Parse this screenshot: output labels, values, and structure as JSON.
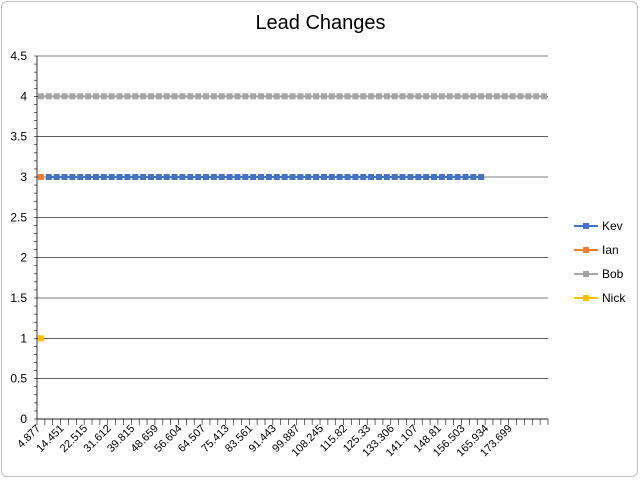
{
  "chart_data": {
    "type": "line",
    "title": "Lead Changes",
    "xlabel": "",
    "ylabel": "",
    "ylim": [
      0,
      4.5
    ],
    "yticks": [
      "0",
      "0.5",
      "1",
      "1.5",
      "2",
      "2.5",
      "3",
      "3.5",
      "4",
      "4.5"
    ],
    "x_tick_labels": [
      "4.877",
      "14.451",
      "22.515",
      "31.612",
      "39.815",
      "48.659",
      "56.604",
      "64.507",
      "75.413",
      "83.561",
      "91.443",
      "99.887",
      "108.245",
      "115.82",
      "125.33",
      "133.306",
      "141.107",
      "148.81",
      "156.503",
      "165.934",
      "173.699"
    ],
    "category_count": 65,
    "grid": "horizontal",
    "legend_position": "right",
    "series": [
      {
        "name": "Kev",
        "color": "#4472C4",
        "value": 3,
        "points": 56,
        "start_index": 1
      },
      {
        "name": "Ian",
        "color": "#ED7D31",
        "value": 3,
        "points": 1,
        "start_index": 0
      },
      {
        "name": "Bob",
        "color": "#A5A5A5",
        "value": 4,
        "points": 65,
        "start_index": 0
      },
      {
        "name": "Nick",
        "color": "#FFC000",
        "value": 1,
        "points": 1,
        "start_index": 0
      }
    ]
  }
}
